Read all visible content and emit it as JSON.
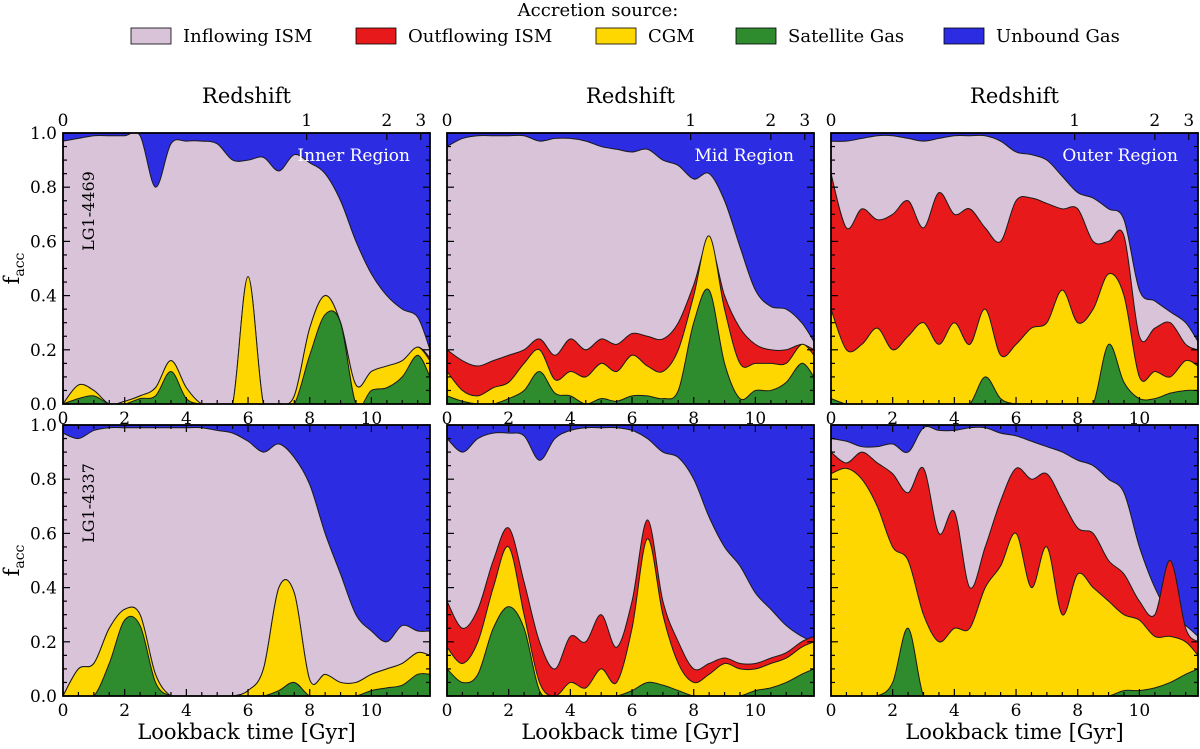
{
  "legend": {
    "title": "Accretion source:",
    "entries": [
      {
        "label": "Inflowing ISM",
        "color": "#d8c3d8"
      },
      {
        "label": "Outflowing ISM",
        "color": "#e8191b"
      },
      {
        "label": "CGM",
        "color": "#ffd700"
      },
      {
        "label": "Satellite Gas",
        "color": "#2e8b2e"
      },
      {
        "label": "Unbound Gas",
        "color": "#2c2ce3"
      }
    ]
  },
  "axes_text": {
    "top_xlabel": "Redshift",
    "xlabel": "Lookback time [Gyr]",
    "ylabel_main": "f",
    "ylabel_sub": "acc",
    "x_ticks": [
      "0",
      "2",
      "4",
      "6",
      "8",
      "10"
    ],
    "y_ticks": [
      "0.0",
      "0.2",
      "0.4",
      "0.6",
      "0.8",
      "1.0"
    ],
    "z_ticks": [
      {
        "label": "0",
        "t": 0.0
      },
      {
        "label": "1",
        "t": 7.9
      },
      {
        "label": "2",
        "t": 10.5
      },
      {
        "label": "3",
        "t": 11.6
      }
    ]
  },
  "chart_data": {
    "type": "area",
    "stacked_order": [
      "Satellite Gas",
      "CGM",
      "Outflowing ISM",
      "Inflowing ISM",
      "Unbound Gas"
    ],
    "xlim": [
      0,
      11.9
    ],
    "ylim": [
      0,
      1.0
    ],
    "x": [
      0,
      0.5,
      1,
      1.5,
      2,
      2.5,
      3,
      3.5,
      4,
      4.5,
      5,
      5.5,
      6,
      6.5,
      7,
      7.5,
      8,
      8.5,
      9,
      9.5,
      10,
      10.5,
      11,
      11.5,
      11.9
    ],
    "rows": [
      {
        "galaxy": "LG1-4469",
        "panels": [
          {
            "region": "Inner Region",
            "satellite": [
              0,
              0.02,
              0.03,
              0,
              0,
              0.02,
              0.03,
              0.12,
              0.02,
              0,
              0,
              0,
              0,
              0,
              0,
              0,
              0.18,
              0.33,
              0.3,
              0,
              0.05,
              0.06,
              0.1,
              0.18,
              0.1
            ],
            "cgm": [
              0,
              0.07,
              0.05,
              0,
              0.01,
              0.03,
              0.06,
              0.16,
              0.06,
              0,
              0,
              0,
              0.47,
              0,
              0,
              0.03,
              0.28,
              0.4,
              0.3,
              0.07,
              0.12,
              0.14,
              0.16,
              0.21,
              0.16
            ],
            "outflow": [
              0,
              0.07,
              0.05,
              0,
              0.01,
              0.03,
              0.06,
              0.16,
              0.06,
              0,
              0,
              0,
              0.47,
              0,
              0,
              0.03,
              0.28,
              0.4,
              0.3,
              0.07,
              0.12,
              0.14,
              0.16,
              0.21,
              0.17
            ],
            "inflow": [
              0.97,
              0.98,
              0.99,
              0.99,
              0.99,
              0.99,
              0.8,
              0.96,
              0.97,
              0.97,
              0.96,
              0.9,
              0.9,
              0.91,
              0.86,
              0.92,
              0.89,
              0.85,
              0.75,
              0.6,
              0.48,
              0.4,
              0.35,
              0.32,
              0.2
            ]
          },
          {
            "region": "Mid Region",
            "satellite": [
              0.03,
              0.01,
              0,
              0,
              0.02,
              0.05,
              0.12,
              0.04,
              0.03,
              0,
              0.02,
              0.01,
              0.03,
              0.03,
              0.02,
              0.05,
              0.3,
              0.42,
              0.15,
              0.02,
              0.05,
              0.05,
              0.08,
              0.15,
              0.1
            ],
            "cgm": [
              0.12,
              0.05,
              0.03,
              0.06,
              0.08,
              0.15,
              0.2,
              0.09,
              0.12,
              0.1,
              0.15,
              0.12,
              0.18,
              0.14,
              0.12,
              0.2,
              0.4,
              0.62,
              0.35,
              0.15,
              0.15,
              0.15,
              0.15,
              0.22,
              0.18
            ],
            "outflow": [
              0.2,
              0.16,
              0.14,
              0.16,
              0.18,
              0.2,
              0.24,
              0.18,
              0.24,
              0.2,
              0.24,
              0.22,
              0.26,
              0.25,
              0.24,
              0.3,
              0.44,
              0.6,
              0.4,
              0.28,
              0.22,
              0.2,
              0.2,
              0.22,
              0.2
            ],
            "inflow": [
              0.95,
              0.98,
              0.99,
              0.99,
              0.99,
              0.99,
              0.97,
              0.98,
              0.98,
              0.97,
              0.95,
              0.94,
              0.93,
              0.94,
              0.9,
              0.88,
              0.83,
              0.85,
              0.75,
              0.58,
              0.42,
              0.36,
              0.35,
              0.3,
              0.23
            ]
          },
          {
            "region": "Outer Region",
            "satellite": [
              0.02,
              0,
              0,
              0,
              0,
              0,
              0,
              0,
              0,
              0,
              0.1,
              0.02,
              0,
              0,
              0,
              0,
              0,
              0,
              0.22,
              0.08,
              0.02,
              0.02,
              0.04,
              0.05,
              0.05
            ],
            "cgm": [
              0.35,
              0.2,
              0.22,
              0.28,
              0.2,
              0.25,
              0.3,
              0.22,
              0.3,
              0.22,
              0.35,
              0.18,
              0.22,
              0.28,
              0.3,
              0.42,
              0.3,
              0.35,
              0.48,
              0.4,
              0.1,
              0.12,
              0.1,
              0.16,
              0.14
            ],
            "outflow": [
              0.85,
              0.65,
              0.72,
              0.68,
              0.7,
              0.75,
              0.65,
              0.78,
              0.7,
              0.72,
              0.65,
              0.6,
              0.75,
              0.76,
              0.74,
              0.72,
              0.72,
              0.6,
              0.6,
              0.62,
              0.25,
              0.28,
              0.3,
              0.22,
              0.2
            ],
            "inflow": [
              0.97,
              0.97,
              0.98,
              0.99,
              0.99,
              0.98,
              0.97,
              0.98,
              0.99,
              0.99,
              0.99,
              0.97,
              0.93,
              0.92,
              0.9,
              0.84,
              0.78,
              0.76,
              0.72,
              0.68,
              0.42,
              0.38,
              0.34,
              0.3,
              0.23
            ]
          }
        ]
      },
      {
        "galaxy": "LG1-4337",
        "panels": [
          {
            "region": "",
            "satellite": [
              0,
              0,
              0,
              0.12,
              0.28,
              0.26,
              0.05,
              0,
              0,
              0,
              0,
              0,
              0,
              0,
              0.02,
              0.05,
              0,
              0,
              0,
              0,
              0.02,
              0.03,
              0.04,
              0.08,
              0.08
            ],
            "cgm": [
              0,
              0.1,
              0.12,
              0.25,
              0.32,
              0.3,
              0.08,
              0,
              0,
              0,
              0,
              0,
              0.02,
              0.1,
              0.4,
              0.38,
              0.06,
              0.08,
              0.05,
              0.05,
              0.08,
              0.1,
              0.12,
              0.16,
              0.15
            ],
            "outflow": [
              0,
              0.1,
              0.12,
              0.25,
              0.32,
              0.3,
              0.08,
              0,
              0,
              0,
              0,
              0,
              0.02,
              0.1,
              0.4,
              0.38,
              0.06,
              0.08,
              0.05,
              0.05,
              0.08,
              0.1,
              0.12,
              0.16,
              0.15
            ],
            "inflow": [
              0.97,
              0.95,
              0.98,
              0.99,
              0.99,
              0.99,
              0.99,
              0.99,
              0.99,
              0.99,
              0.98,
              0.97,
              0.94,
              0.9,
              0.93,
              0.88,
              0.78,
              0.6,
              0.45,
              0.3,
              0.24,
              0.2,
              0.26,
              0.24,
              0.24
            ]
          },
          {
            "region": "",
            "satellite": [
              0.1,
              0.05,
              0.08,
              0.25,
              0.33,
              0.25,
              0.02,
              0,
              0,
              0,
              0,
              0,
              0.02,
              0.05,
              0.04,
              0.02,
              0,
              0,
              0,
              0,
              0.02,
              0.03,
              0.05,
              0.08,
              0.1
            ],
            "cgm": [
              0.18,
              0.12,
              0.2,
              0.4,
              0.55,
              0.3,
              0.05,
              0,
              0.05,
              0.03,
              0.1,
              0.05,
              0.25,
              0.58,
              0.3,
              0.12,
              0.05,
              0.08,
              0.12,
              0.1,
              0.1,
              0.12,
              0.14,
              0.18,
              0.2
            ],
            "outflow": [
              0.35,
              0.25,
              0.32,
              0.5,
              0.62,
              0.42,
              0.2,
              0.1,
              0.22,
              0.2,
              0.3,
              0.18,
              0.35,
              0.65,
              0.35,
              0.2,
              0.1,
              0.12,
              0.14,
              0.12,
              0.12,
              0.14,
              0.16,
              0.2,
              0.22
            ],
            "inflow": [
              0.95,
              0.9,
              0.95,
              0.97,
              0.97,
              0.96,
              0.87,
              0.95,
              0.98,
              0.99,
              0.99,
              0.99,
              0.98,
              0.95,
              0.9,
              0.88,
              0.8,
              0.66,
              0.55,
              0.48,
              0.38,
              0.32,
              0.26,
              0.22,
              0.2
            ]
          },
          {
            "region": "",
            "satellite": [
              0,
              0,
              0,
              0,
              0.05,
              0.25,
              0,
              0,
              0,
              0,
              0,
              0,
              0,
              0,
              0,
              0,
              0,
              0,
              0,
              0.02,
              0.02,
              0.03,
              0.05,
              0.08,
              0.1
            ],
            "cgm": [
              0.82,
              0.84,
              0.8,
              0.7,
              0.55,
              0.5,
              0.3,
              0.2,
              0.25,
              0.25,
              0.4,
              0.48,
              0.6,
              0.4,
              0.55,
              0.3,
              0.45,
              0.4,
              0.35,
              0.3,
              0.28,
              0.22,
              0.22,
              0.2,
              0.15
            ],
            "outflow": [
              0.9,
              0.86,
              0.9,
              0.86,
              0.82,
              0.75,
              0.84,
              0.6,
              0.68,
              0.4,
              0.55,
              0.72,
              0.84,
              0.8,
              0.82,
              0.72,
              0.62,
              0.6,
              0.5,
              0.45,
              0.35,
              0.3,
              0.5,
              0.25,
              0.2
            ],
            "inflow": [
              0.95,
              0.94,
              0.92,
              0.92,
              0.93,
              0.9,
              0.99,
              0.98,
              0.98,
              0.99,
              0.99,
              0.97,
              0.96,
              0.94,
              0.92,
              0.9,
              0.87,
              0.85,
              0.8,
              0.75,
              0.55,
              0.4,
              0.3,
              0.26,
              0.22
            ]
          }
        ]
      }
    ]
  }
}
